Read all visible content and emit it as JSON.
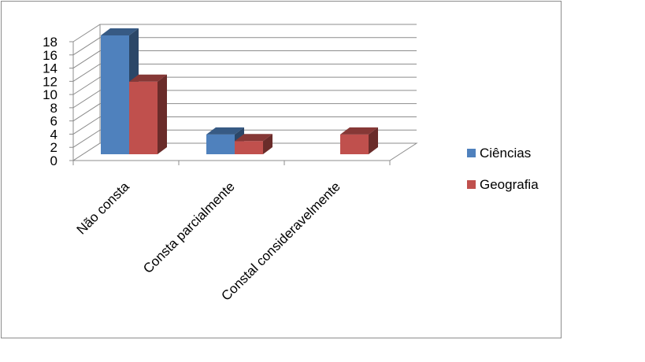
{
  "chart_data": {
    "type": "bar",
    "categories": [
      "Não consta",
      "Consta parcialmente",
      "Constal consideravelmente"
    ],
    "series": [
      {
        "name": "Ciências",
        "values": [
          18,
          3,
          0
        ],
        "color": "#4f81bd"
      },
      {
        "name": "Geografia",
        "values": [
          11,
          2,
          3
        ],
        "color": "#c0504d"
      }
    ],
    "yticks": [
      "0",
      "2",
      "4",
      "6",
      "8",
      "10",
      "12",
      "14",
      "16",
      "18"
    ],
    "ylim": [
      0,
      18
    ],
    "grid": true,
    "legend_position": "right",
    "style": "3d-clustered-column"
  }
}
